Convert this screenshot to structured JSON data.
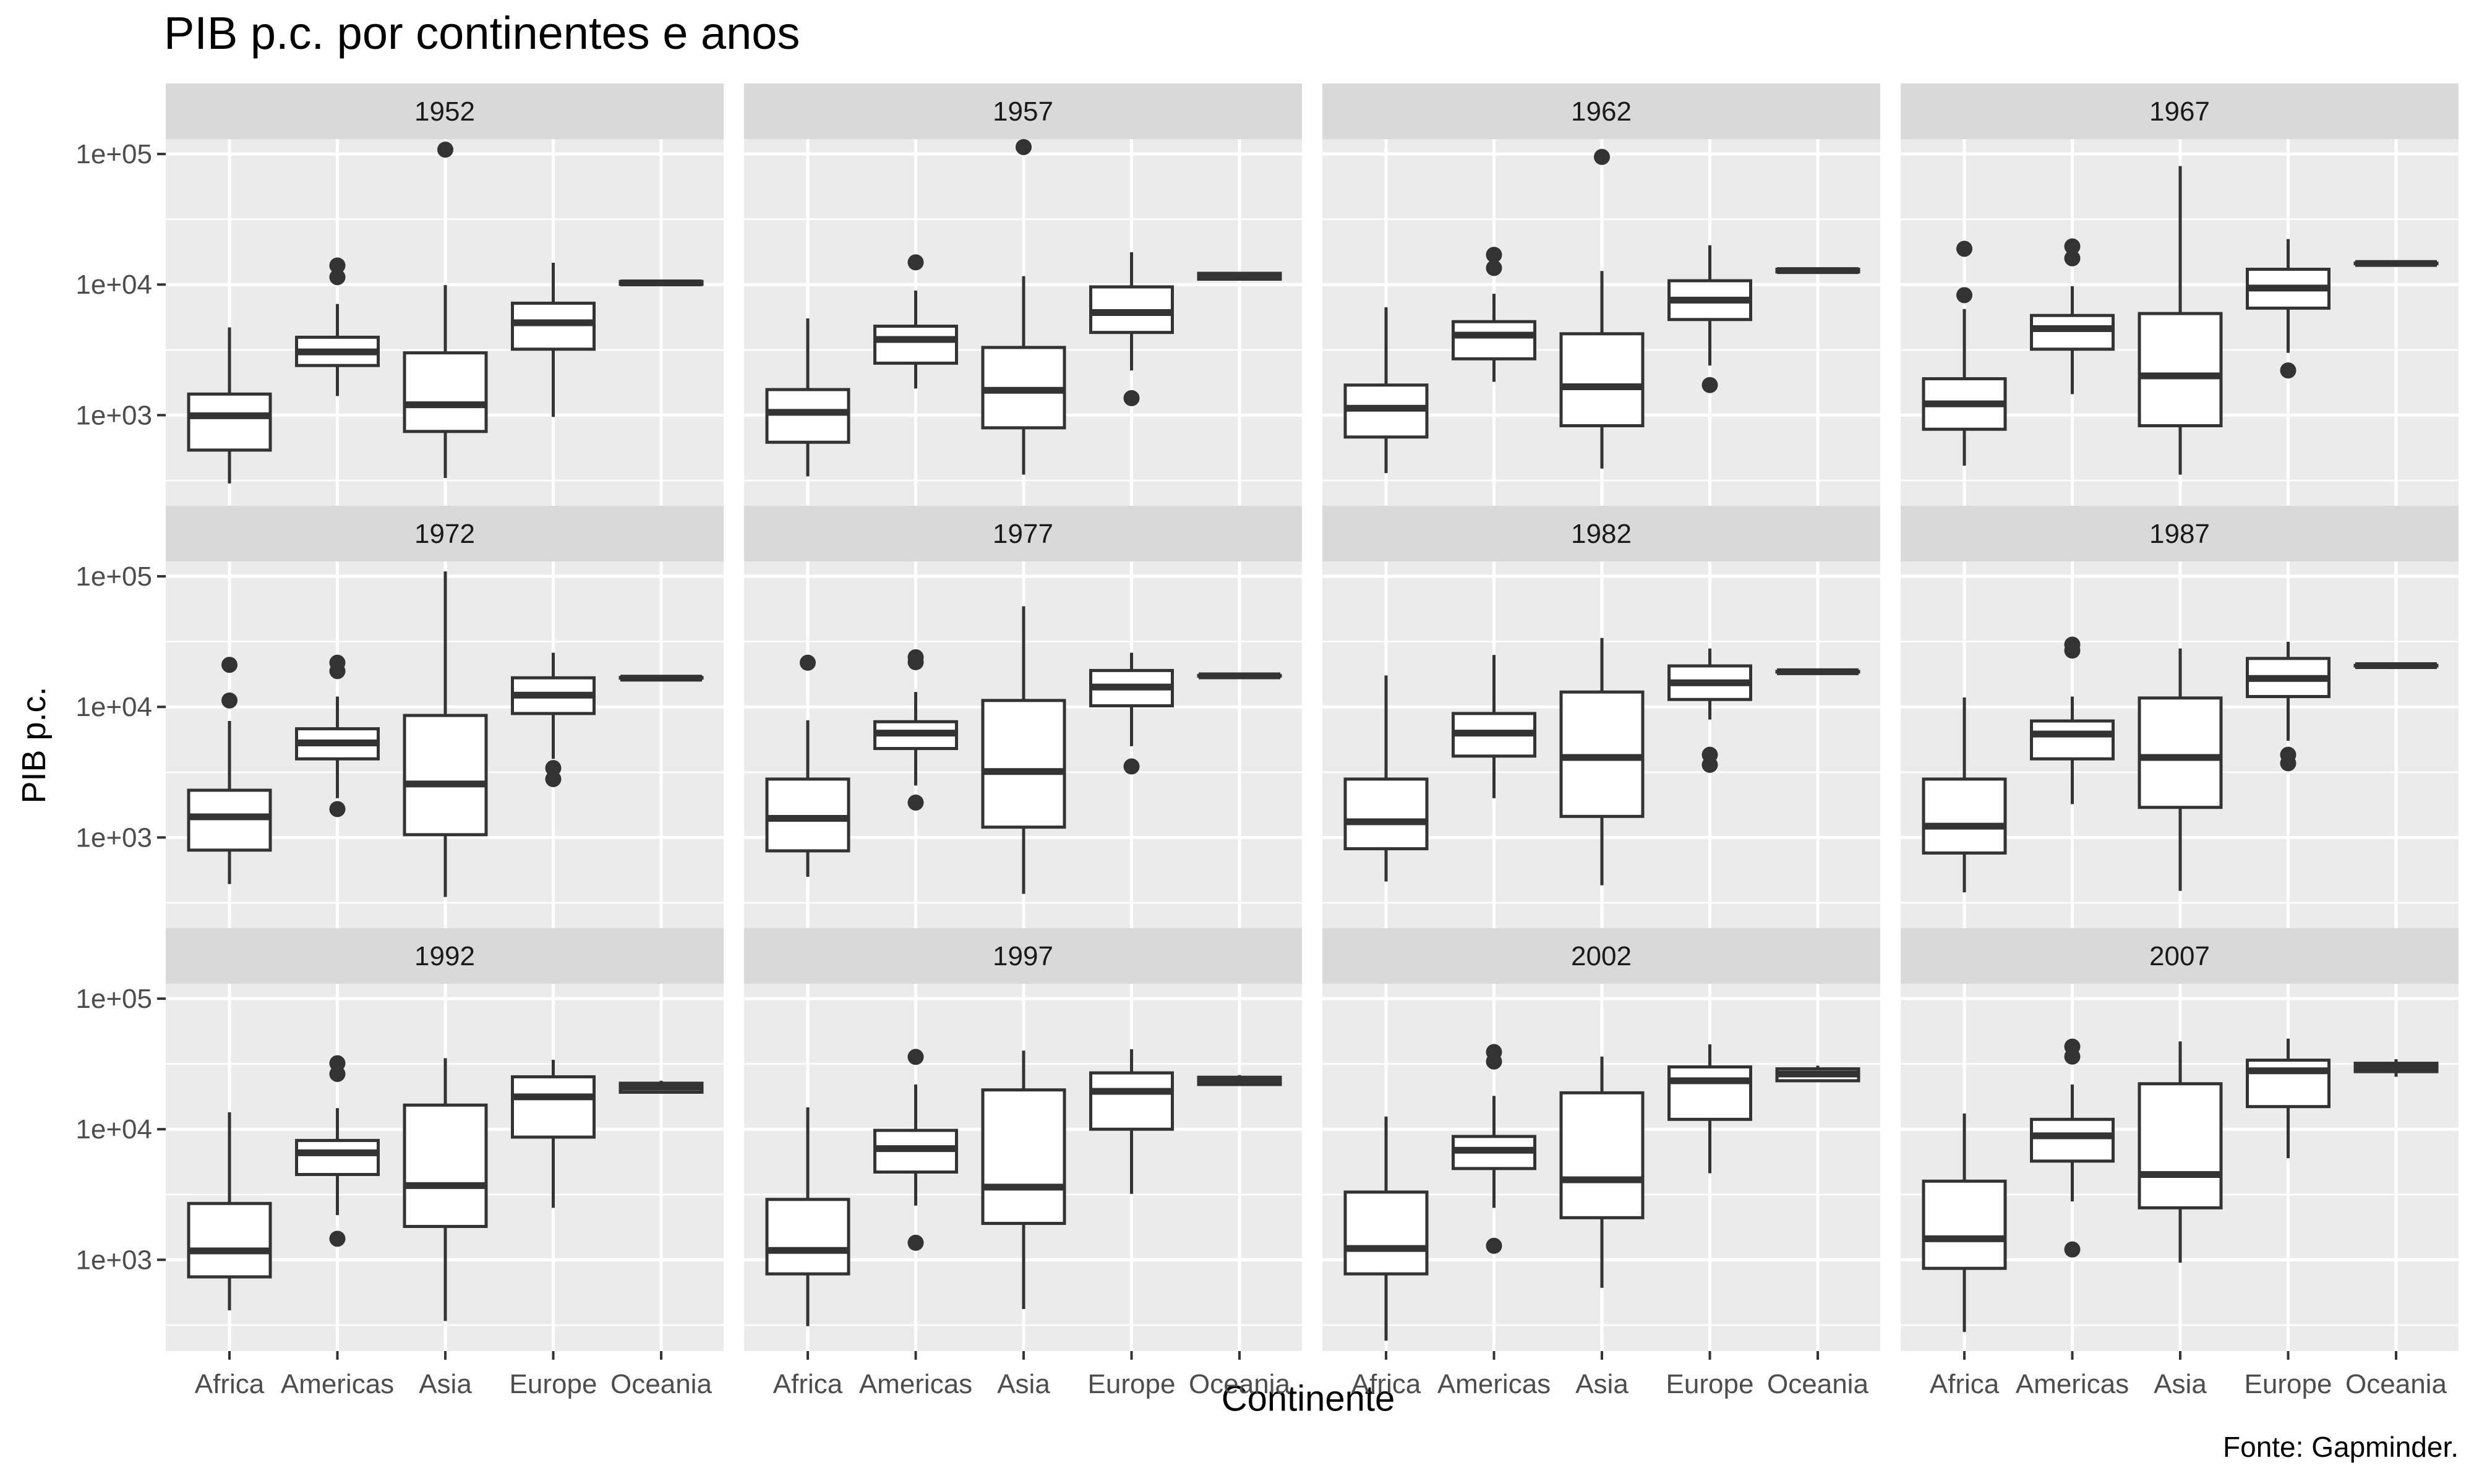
{
  "title": "PIB p.c. por continentes e anos",
  "caption": "Fonte: Gapminder.",
  "chart_data": {
    "type": "boxplot",
    "title": "PIB p.c. por continentes e anos",
    "xlabel": "Continente",
    "ylabel": "PIB p.c.",
    "y_scale": "log10",
    "y_ticks": [
      1000,
      10000,
      100000
    ],
    "y_tick_labels": [
      "1e+03",
      "1e+04",
      "1e+05"
    ],
    "ylim": [
      200,
      130000
    ],
    "categories": [
      "Africa",
      "Americas",
      "Asia",
      "Europe",
      "Oceania"
    ],
    "facets": [
      {
        "label": "1952",
        "boxes": [
          {
            "min": 300,
            "q1": 540,
            "median": 990,
            "q3": 1450,
            "max": 4700,
            "outliers": []
          },
          {
            "min": 1400,
            "q1": 2400,
            "median": 3050,
            "q3": 3950,
            "max": 7100,
            "outliers": [
              11400,
              14000
            ]
          },
          {
            "min": 330,
            "q1": 750,
            "median": 1200,
            "q3": 3000,
            "max": 9900,
            "outliers": [
              108000
            ]
          },
          {
            "min": 970,
            "q1": 3200,
            "median": 5100,
            "q3": 7200,
            "max": 14700,
            "outliers": []
          },
          {
            "min": 10000,
            "q1": 10040,
            "median": 10300,
            "q3": 10560,
            "max": 10600,
            "outliers": []
          }
        ]
      },
      {
        "label": "1957",
        "boxes": [
          {
            "min": 340,
            "q1": 620,
            "median": 1050,
            "q3": 1570,
            "max": 5500,
            "outliers": []
          },
          {
            "min": 1600,
            "q1": 2500,
            "median": 3800,
            "q3": 4800,
            "max": 9000,
            "outliers": [
              14800
            ]
          },
          {
            "min": 350,
            "q1": 800,
            "median": 1550,
            "q3": 3300,
            "max": 11600,
            "outliers": [
              113000
            ]
          },
          {
            "min": 2200,
            "q1": 4300,
            "median": 6100,
            "q3": 9600,
            "max": 17700,
            "outliers": [
              1350
            ]
          },
          {
            "min": 10900,
            "q1": 11000,
            "median": 11500,
            "q3": 12200,
            "max": 12300,
            "outliers": []
          }
        ]
      },
      {
        "label": "1962",
        "boxes": [
          {
            "min": 360,
            "q1": 680,
            "median": 1130,
            "q3": 1700,
            "max": 6700,
            "outliers": []
          },
          {
            "min": 1800,
            "q1": 2700,
            "median": 4100,
            "q3": 5200,
            "max": 8500,
            "outliers": [
              13400,
              16900
            ]
          },
          {
            "min": 390,
            "q1": 830,
            "median": 1650,
            "q3": 4200,
            "max": 12700,
            "outliers": [
              95000
            ]
          },
          {
            "min": 2400,
            "q1": 5400,
            "median": 7600,
            "q3": 10700,
            "max": 20000,
            "outliers": [
              1700
            ]
          },
          {
            "min": 12400,
            "q1": 12500,
            "median": 12800,
            "q3": 13100,
            "max": 13200,
            "outliers": []
          }
        ]
      },
      {
        "label": "1967",
        "boxes": [
          {
            "min": 410,
            "q1": 780,
            "median": 1220,
            "q3": 1900,
            "max": 6500,
            "outliers": [
              8300,
              18800
            ]
          },
          {
            "min": 1450,
            "q1": 3200,
            "median": 4600,
            "q3": 5800,
            "max": 9700,
            "outliers": [
              15900,
              19600
            ]
          },
          {
            "min": 350,
            "q1": 830,
            "median": 2000,
            "q3": 6000,
            "max": 80900,
            "outliers": []
          },
          {
            "min": 3000,
            "q1": 6600,
            "median": 9400,
            "q3": 13100,
            "max": 22300,
            "outliers": [
              2200
            ]
          },
          {
            "min": 14400,
            "q1": 14500,
            "median": 14500,
            "q3": 14600,
            "max": 14600,
            "outliers": []
          }
        ]
      },
      {
        "label": "1972",
        "boxes": [
          {
            "min": 440,
            "q1": 800,
            "median": 1440,
            "q3": 2300,
            "max": 7800,
            "outliers": [
              11200,
              21000
            ]
          },
          {
            "min": 2000,
            "q1": 4000,
            "median": 5300,
            "q3": 6800,
            "max": 12000,
            "outliers": [
              1650,
              18800,
              21800
            ]
          },
          {
            "min": 350,
            "q1": 1050,
            "median": 2570,
            "q3": 8600,
            "max": 109000,
            "outliers": []
          },
          {
            "min": 4000,
            "q1": 8900,
            "median": 12300,
            "q3": 16700,
            "max": 26000,
            "outliers": [
              2800,
              3400
            ]
          },
          {
            "min": 16600,
            "q1": 16600,
            "median": 16600,
            "q3": 16800,
            "max": 16800,
            "outliers": []
          }
        ]
      },
      {
        "label": "1977",
        "boxes": [
          {
            "min": 500,
            "q1": 790,
            "median": 1400,
            "q3": 2800,
            "max": 7900,
            "outliers": [
              21800
            ]
          },
          {
            "min": 2500,
            "q1": 4800,
            "median": 6300,
            "q3": 7700,
            "max": 13000,
            "outliers": [
              1850,
              22000,
              24000
            ]
          },
          {
            "min": 370,
            "q1": 1200,
            "median": 3200,
            "q3": 11200,
            "max": 59000,
            "outliers": []
          },
          {
            "min": 5000,
            "q1": 10200,
            "median": 14200,
            "q3": 19000,
            "max": 26000,
            "outliers": [
              3500
            ]
          },
          {
            "min": 17300,
            "q1": 17300,
            "median": 17300,
            "q3": 17400,
            "max": 17400,
            "outliers": []
          }
        ]
      },
      {
        "label": "1982",
        "boxes": [
          {
            "min": 460,
            "q1": 820,
            "median": 1320,
            "q3": 2800,
            "max": 17400,
            "outliers": []
          },
          {
            "min": 2000,
            "q1": 4200,
            "median": 6300,
            "q3": 8900,
            "max": 25000,
            "outliers": []
          },
          {
            "min": 430,
            "q1": 1450,
            "median": 4100,
            "q3": 13000,
            "max": 33700,
            "outliers": []
          },
          {
            "min": 8000,
            "q1": 11400,
            "median": 15300,
            "q3": 20600,
            "max": 28000,
            "outliers": [
              3600,
              4300
            ]
          },
          {
            "min": 18500,
            "q1": 18500,
            "median": 18600,
            "q3": 18700,
            "max": 18700,
            "outliers": []
          }
        ]
      },
      {
        "label": "1987",
        "boxes": [
          {
            "min": 380,
            "q1": 760,
            "median": 1220,
            "q3": 2800,
            "max": 11800,
            "outliers": []
          },
          {
            "min": 1800,
            "q1": 4000,
            "median": 6200,
            "q3": 7800,
            "max": 12000,
            "outliers": [
              27000,
              30000
            ]
          },
          {
            "min": 390,
            "q1": 1700,
            "median": 4100,
            "q3": 11700,
            "max": 28000,
            "outliers": []
          },
          {
            "min": 5500,
            "q1": 12000,
            "median": 16500,
            "q3": 23500,
            "max": 31500,
            "outliers": [
              3700,
              4300
            ]
          },
          {
            "min": 20600,
            "q1": 20600,
            "median": 20700,
            "q3": 20800,
            "max": 20800,
            "outliers": []
          }
        ]
      },
      {
        "label": "1992",
        "boxes": [
          {
            "min": 410,
            "q1": 740,
            "median": 1170,
            "q3": 2700,
            "max": 13500,
            "outliers": []
          },
          {
            "min": 2200,
            "q1": 4500,
            "median": 6600,
            "q3": 8200,
            "max": 14500,
            "outliers": [
              1450,
              26500,
              32000
            ]
          },
          {
            "min": 340,
            "q1": 1800,
            "median": 3700,
            "q3": 15300,
            "max": 35000,
            "outliers": []
          },
          {
            "min": 2500,
            "q1": 8700,
            "median": 17700,
            "q3": 25200,
            "max": 34000,
            "outliers": []
          },
          {
            "min": 19000,
            "q1": 19200,
            "median": 21000,
            "q3": 22500,
            "max": 23500,
            "outliers": []
          }
        ]
      },
      {
        "label": "1997",
        "boxes": [
          {
            "min": 310,
            "q1": 780,
            "median": 1180,
            "q3": 2900,
            "max": 14700,
            "outliers": []
          },
          {
            "min": 2600,
            "q1": 4700,
            "median": 7100,
            "q3": 9800,
            "max": 22000,
            "outliers": [
              1350,
              35800
            ]
          },
          {
            "min": 420,
            "q1": 1900,
            "median": 3600,
            "q3": 20000,
            "max": 40000,
            "outliers": []
          },
          {
            "min": 3200,
            "q1": 10000,
            "median": 19500,
            "q3": 27000,
            "max": 41000,
            "outliers": []
          },
          {
            "min": 21800,
            "q1": 22000,
            "median": 23500,
            "q3": 25000,
            "max": 26000,
            "outliers": []
          }
        ]
      },
      {
        "label": "2002",
        "boxes": [
          {
            "min": 240,
            "q1": 780,
            "median": 1220,
            "q3": 3300,
            "max": 12500,
            "outliers": []
          },
          {
            "min": 2500,
            "q1": 5000,
            "median": 6900,
            "q3": 8800,
            "max": 18000,
            "outliers": [
              1280,
              33000,
              39000
            ]
          },
          {
            "min": 610,
            "q1": 2100,
            "median": 4100,
            "q3": 19000,
            "max": 36000,
            "outliers": []
          },
          {
            "min": 4600,
            "q1": 11900,
            "median": 23500,
            "q3": 30000,
            "max": 44700,
            "outliers": []
          },
          {
            "min": 23200,
            "q1": 23500,
            "median": 26500,
            "q3": 29000,
            "max": 30700,
            "outliers": []
          }
        ]
      },
      {
        "label": "2007",
        "boxes": [
          {
            "min": 280,
            "q1": 860,
            "median": 1450,
            "q3": 4000,
            "max": 13200,
            "outliers": []
          },
          {
            "min": 2800,
            "q1": 5700,
            "median": 8900,
            "q3": 11900,
            "max": 22000,
            "outliers": [
              1200,
              36000,
              42900
            ]
          },
          {
            "min": 950,
            "q1": 2500,
            "median": 4500,
            "q3": 22300,
            "max": 47000,
            "outliers": []
          },
          {
            "min": 6000,
            "q1": 14900,
            "median": 28000,
            "q3": 33800,
            "max": 49400,
            "outliers": []
          },
          {
            "min": 25200,
            "q1": 27600,
            "median": 29800,
            "q3": 32000,
            "max": 34400,
            "outliers": []
          }
        ]
      }
    ]
  }
}
